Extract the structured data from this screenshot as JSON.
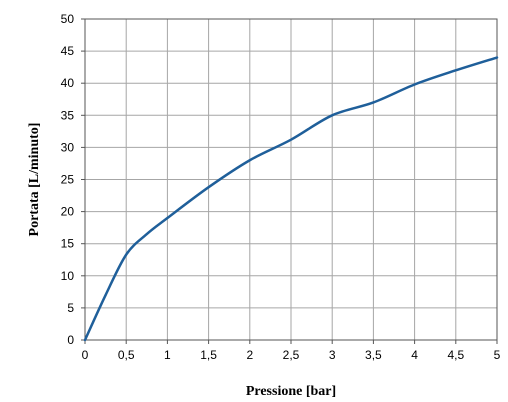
{
  "chart_data": {
    "type": "line",
    "title": "",
    "xlabel": "Pressione [bar]",
    "ylabel": "Portata  [L/minuto]",
    "xlim": [
      0,
      5
    ],
    "ylim": [
      0,
      50
    ],
    "x_ticks": [
      0,
      0.5,
      1,
      1.5,
      2,
      2.5,
      3,
      3.5,
      4,
      4.5,
      5
    ],
    "x_tick_labels": [
      "0",
      "0,5",
      "1",
      "1,5",
      "2",
      "2,5",
      "3",
      "3,5",
      "4",
      "4,5",
      "5"
    ],
    "y_ticks": [
      0,
      5,
      10,
      15,
      20,
      25,
      30,
      35,
      40,
      45,
      50
    ],
    "y_tick_labels": [
      "0",
      "5",
      "10",
      "15",
      "20",
      "25",
      "30",
      "35",
      "40",
      "45",
      "50"
    ],
    "grid": true,
    "legend": "none",
    "series": [
      {
        "color": "#1f5f9a",
        "x": [
          0,
          0.25,
          0.5,
          0.75,
          1,
          1.5,
          2,
          2.5,
          3,
          3.5,
          4,
          4.5,
          5
        ],
        "y": [
          0,
          7,
          13.3,
          16.5,
          19,
          23.8,
          28,
          31.2,
          35,
          37,
          39.8,
          42,
          44
        ]
      }
    ]
  }
}
